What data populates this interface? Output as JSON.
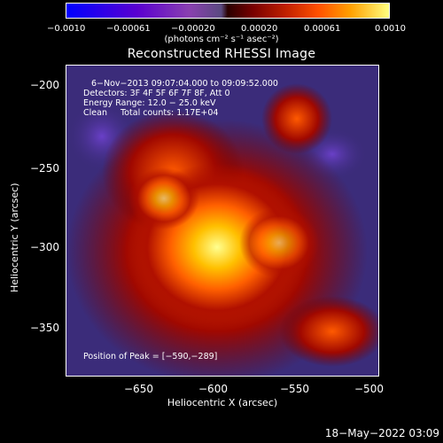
{
  "colorbar": {
    "ticks": [
      "−0.0010",
      "−0.00061",
      "−0.00020",
      "0.00020",
      "0.00061",
      "0.0010"
    ],
    "unit_label": "(photons cm⁻² s⁻¹ asec⁻²)"
  },
  "image": {
    "title": "Reconstructed RHESSI Image",
    "time_range": "6−Nov−2013 09:07:04.000 to 09:09:52.000",
    "detectors": "Detectors: 3F 4F 5F 6F 7F 8F, Att 0",
    "energy": "Energy Range: 12.0 − 25.0 keV",
    "clean": "Clean     Total counts: 1.17E+04",
    "peak": "Position of Peak = [−590,−289]"
  },
  "axes": {
    "xlabel": "Heliocentric X (arcsec)",
    "ylabel": "Heliocentric Y (arcsec)",
    "xticks": [
      "−650",
      "−600",
      "−550",
      "−500"
    ],
    "yticks": [
      "−200",
      "−250",
      "−300",
      "−350"
    ]
  },
  "footer": {
    "date": "18−May−2022 03:09"
  }
}
